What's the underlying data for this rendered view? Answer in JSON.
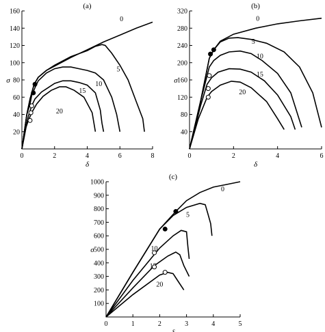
{
  "chart_data": [
    {
      "type": "line",
      "panel_label": "(a)",
      "xlabel": "δ",
      "ylabel": "σ",
      "xlim": [
        0,
        8
      ],
      "ylim": [
        0,
        160
      ],
      "xticks": [
        0,
        2,
        4,
        6,
        8
      ],
      "yticks": [
        20,
        40,
        60,
        80,
        100,
        120,
        140,
        160
      ],
      "series": [
        {
          "name": "0",
          "points": [
            [
              0,
              0
            ],
            [
              0.3,
              40
            ],
            [
              0.5,
              58
            ],
            [
              0.75,
              75
            ],
            [
              1.0,
              83
            ],
            [
              1.5,
              91
            ],
            [
              2,
              96
            ],
            [
              3,
              106
            ],
            [
              4,
              115
            ],
            [
              5,
              124
            ],
            [
              6,
              132
            ],
            [
              7,
              140
            ],
            [
              8,
              147
            ]
          ],
          "label_at": [
            6.1,
            148
          ]
        },
        {
          "name": "5",
          "points": [
            [
              0,
              0
            ],
            [
              0.3,
              40
            ],
            [
              0.5,
              58
            ],
            [
              0.75,
              75
            ],
            [
              1.0,
              83
            ],
            [
              1.5,
              91
            ],
            [
              2,
              97
            ],
            [
              3,
              107
            ],
            [
              4,
              114
            ],
            [
              4.5,
              119
            ],
            [
              4.9,
              121
            ],
            [
              5.1,
              120
            ],
            [
              5.5,
              111
            ],
            [
              6,
              97
            ],
            [
              6.5,
              80
            ],
            [
              7,
              55
            ],
            [
              7.4,
              35
            ],
            [
              7.5,
              20
            ]
          ],
          "label_at": [
            5.9,
            90
          ]
        },
        {
          "name": "10",
          "points": [
            [
              0,
              0
            ],
            [
              0.3,
              40
            ],
            [
              0.5,
              52
            ],
            [
              0.6,
              62
            ],
            [
              0.8,
              71
            ],
            [
              1,
              79
            ],
            [
              1.5,
              88
            ],
            [
              2,
              93
            ],
            [
              2.5,
              95
            ],
            [
              3,
              95
            ],
            [
              3.5,
              93
            ],
            [
              4,
              91
            ],
            [
              4.5,
              88
            ],
            [
              5,
              80
            ],
            [
              5.5,
              60
            ],
            [
              5.8,
              40
            ],
            [
              6,
              20
            ]
          ],
          "label_at": [
            4.7,
            73
          ]
        },
        {
          "name": "15",
          "points": [
            [
              0,
              0
            ],
            [
              0.3,
              30
            ],
            [
              0.4,
              38
            ],
            [
              0.6,
              50
            ],
            [
              0.8,
              58
            ],
            [
              1.2,
              66
            ],
            [
              1.6,
              71
            ],
            [
              2,
              76
            ],
            [
              2.5,
              79
            ],
            [
              3,
              79
            ],
            [
              3.5,
              77
            ],
            [
              4,
              74
            ],
            [
              4.5,
              65
            ],
            [
              4.8,
              45
            ],
            [
              4.9,
              30
            ],
            [
              5,
              20
            ]
          ],
          "label_at": [
            3.7,
            65
          ]
        },
        {
          "name": "20",
          "points": [
            [
              0,
              0
            ],
            [
              0.25,
              25
            ],
            [
              0.4,
              33
            ],
            [
              0.6,
              42
            ],
            [
              0.9,
              52
            ],
            [
              1.3,
              61
            ],
            [
              1.8,
              68
            ],
            [
              2.3,
              72
            ],
            [
              2.7,
              72
            ],
            [
              3.2,
              68
            ],
            [
              3.8,
              60
            ],
            [
              4.3,
              42
            ],
            [
              4.5,
              20
            ]
          ],
          "label_at": [
            2.3,
            41
          ]
        }
      ],
      "markers": [
        {
          "x": 0.8,
          "y": 75,
          "filled": true
        },
        {
          "x": 0.7,
          "y": 65,
          "filled": true
        },
        {
          "x": 0.6,
          "y": 50,
          "filled": false
        },
        {
          "x": 0.55,
          "y": 42,
          "filled": false
        },
        {
          "x": 0.5,
          "y": 33,
          "filled": false
        }
      ]
    },
    {
      "type": "line",
      "panel_label": "(b)",
      "xlabel": "δ",
      "ylabel": "σ",
      "xlim": [
        0,
        6
      ],
      "ylim": [
        0,
        320
      ],
      "xticks": [
        0,
        2,
        4,
        6
      ],
      "yticks": [
        40,
        80,
        120,
        160,
        200,
        240,
        280,
        320
      ],
      "series": [
        {
          "name": "0",
          "points": [
            [
              0,
              0
            ],
            [
              0.5,
              110
            ],
            [
              0.9,
              210
            ],
            [
              1.1,
              230
            ],
            [
              1.4,
              250
            ],
            [
              2,
              266
            ],
            [
              3,
              280
            ],
            [
              4,
              290
            ],
            [
              5,
              297
            ],
            [
              6,
              303
            ]
          ],
          "label_at": [
            3.1,
            297
          ]
        },
        {
          "name": "5",
          "points": [
            [
              0,
              0
            ],
            [
              0.5,
              110
            ],
            [
              0.9,
              210
            ],
            [
              1.1,
              230
            ],
            [
              1.4,
              248
            ],
            [
              1.8,
              257
            ],
            [
              2.2,
              258
            ],
            [
              2.8,
              254
            ],
            [
              3.5,
              245
            ],
            [
              4.3,
              225
            ],
            [
              5,
              190
            ],
            [
              5.6,
              130
            ],
            [
              6,
              50
            ]
          ],
          "label_at": [
            2.9,
            244
          ]
        },
        {
          "name": "10",
          "points": [
            [
              0,
              0
            ],
            [
              0.5,
              110
            ],
            [
              0.9,
              190
            ],
            [
              1.1,
              205
            ],
            [
              1.4,
              217
            ],
            [
              1.8,
              225
            ],
            [
              2.3,
              227
            ],
            [
              2.8,
              221
            ],
            [
              3.3,
              205
            ],
            [
              4,
              175
            ],
            [
              4.6,
              130
            ],
            [
              5.1,
              50
            ]
          ],
          "label_at": [
            3.2,
            210
          ]
        },
        {
          "name": "15",
          "points": [
            [
              0,
              0
            ],
            [
              0.5,
              100
            ],
            [
              0.8,
              150
            ],
            [
              1,
              165
            ],
            [
              1.3,
              178
            ],
            [
              1.8,
              186
            ],
            [
              2.3,
              185
            ],
            [
              2.8,
              178
            ],
            [
              3.4,
              158
            ],
            [
              4,
              125
            ],
            [
              4.6,
              75
            ],
            [
              4.8,
              45
            ]
          ],
          "label_at": [
            3.2,
            168
          ]
        },
        {
          "name": "20",
          "points": [
            [
              0,
              0
            ],
            [
              0.4,
              70
            ],
            [
              0.8,
              120
            ],
            [
              1.0,
              133
            ],
            [
              1.4,
              148
            ],
            [
              1.9,
              157
            ],
            [
              2.3,
              155
            ],
            [
              2.8,
              142
            ],
            [
              3.5,
              110
            ],
            [
              4,
              70
            ],
            [
              4.3,
              45
            ]
          ],
          "label_at": [
            2.4,
            127
          ]
        }
      ],
      "markers": [
        {
          "x": 1.1,
          "y": 230,
          "filled": true
        },
        {
          "x": 0.95,
          "y": 220,
          "filled": true
        },
        {
          "x": 0.9,
          "y": 170,
          "filled": false
        },
        {
          "x": 0.85,
          "y": 140,
          "filled": false
        },
        {
          "x": 0.85,
          "y": 120,
          "filled": false
        }
      ]
    },
    {
      "type": "line",
      "panel_label": "(c)",
      "xlabel": "δ",
      "ylabel": "σ",
      "xlim": [
        0,
        5
      ],
      "ylim": [
        0,
        1000
      ],
      "xticks": [
        0,
        1,
        2,
        3,
        4,
        5
      ],
      "yticks": [
        100,
        200,
        300,
        400,
        500,
        600,
        700,
        800,
        900,
        1000
      ],
      "series": [
        {
          "name": "0",
          "points": [
            [
              0,
              0
            ],
            [
              1,
              330
            ],
            [
              2,
              650
            ],
            [
              2.6,
              780
            ],
            [
              3,
              860
            ],
            [
              3.5,
              920
            ],
            [
              4,
              960
            ],
            [
              4.5,
              980
            ],
            [
              5,
              1000
            ]
          ],
          "label_at": [
            4.35,
            930
          ]
        },
        {
          "name": "5",
          "points": [
            [
              0,
              0
            ],
            [
              1,
              330
            ],
            [
              2,
              650
            ],
            [
              2.5,
              750
            ],
            [
              3,
              810
            ],
            [
              3.5,
              840
            ],
            [
              3.7,
              830
            ],
            [
              3.8,
              760
            ],
            [
              3.9,
              690
            ],
            [
              3.95,
              600
            ]
          ],
          "label_at": [
            3.05,
            740
          ]
        },
        {
          "name": "10",
          "points": [
            [
              0,
              0
            ],
            [
              1,
              270
            ],
            [
              2,
              510
            ],
            [
              2.5,
              600
            ],
            [
              2.8,
              640
            ],
            [
              3,
              630
            ],
            [
              3.05,
              520
            ],
            [
              3.1,
              430
            ]
          ],
          "label_at": [
            1.8,
            490
          ]
        },
        {
          "name": "15",
          "points": [
            [
              0,
              0
            ],
            [
              1,
              215
            ],
            [
              1.8,
              380
            ],
            [
              2.3,
              450
            ],
            [
              2.6,
              480
            ],
            [
              2.75,
              460
            ],
            [
              2.9,
              380
            ],
            [
              3.1,
              300
            ]
          ],
          "label_at": [
            1.75,
            360
          ]
        },
        {
          "name": "20",
          "points": [
            [
              0,
              0
            ],
            [
              1,
              165
            ],
            [
              2.0,
              310
            ],
            [
              2.3,
              330
            ],
            [
              2.5,
              320
            ],
            [
              2.7,
              260
            ],
            [
              2.9,
              200
            ]
          ],
          "label_at": [
            2.0,
            225
          ]
        }
      ],
      "markers": [
        {
          "x": 2.6,
          "y": 780,
          "filled": true
        },
        {
          "x": 2.2,
          "y": 650,
          "filled": true
        },
        {
          "x": 1.8,
          "y": 475,
          "filled": false
        },
        {
          "x": 1.8,
          "y": 370,
          "filled": false
        },
        {
          "x": 2.2,
          "y": 330,
          "filled": false
        }
      ]
    }
  ]
}
